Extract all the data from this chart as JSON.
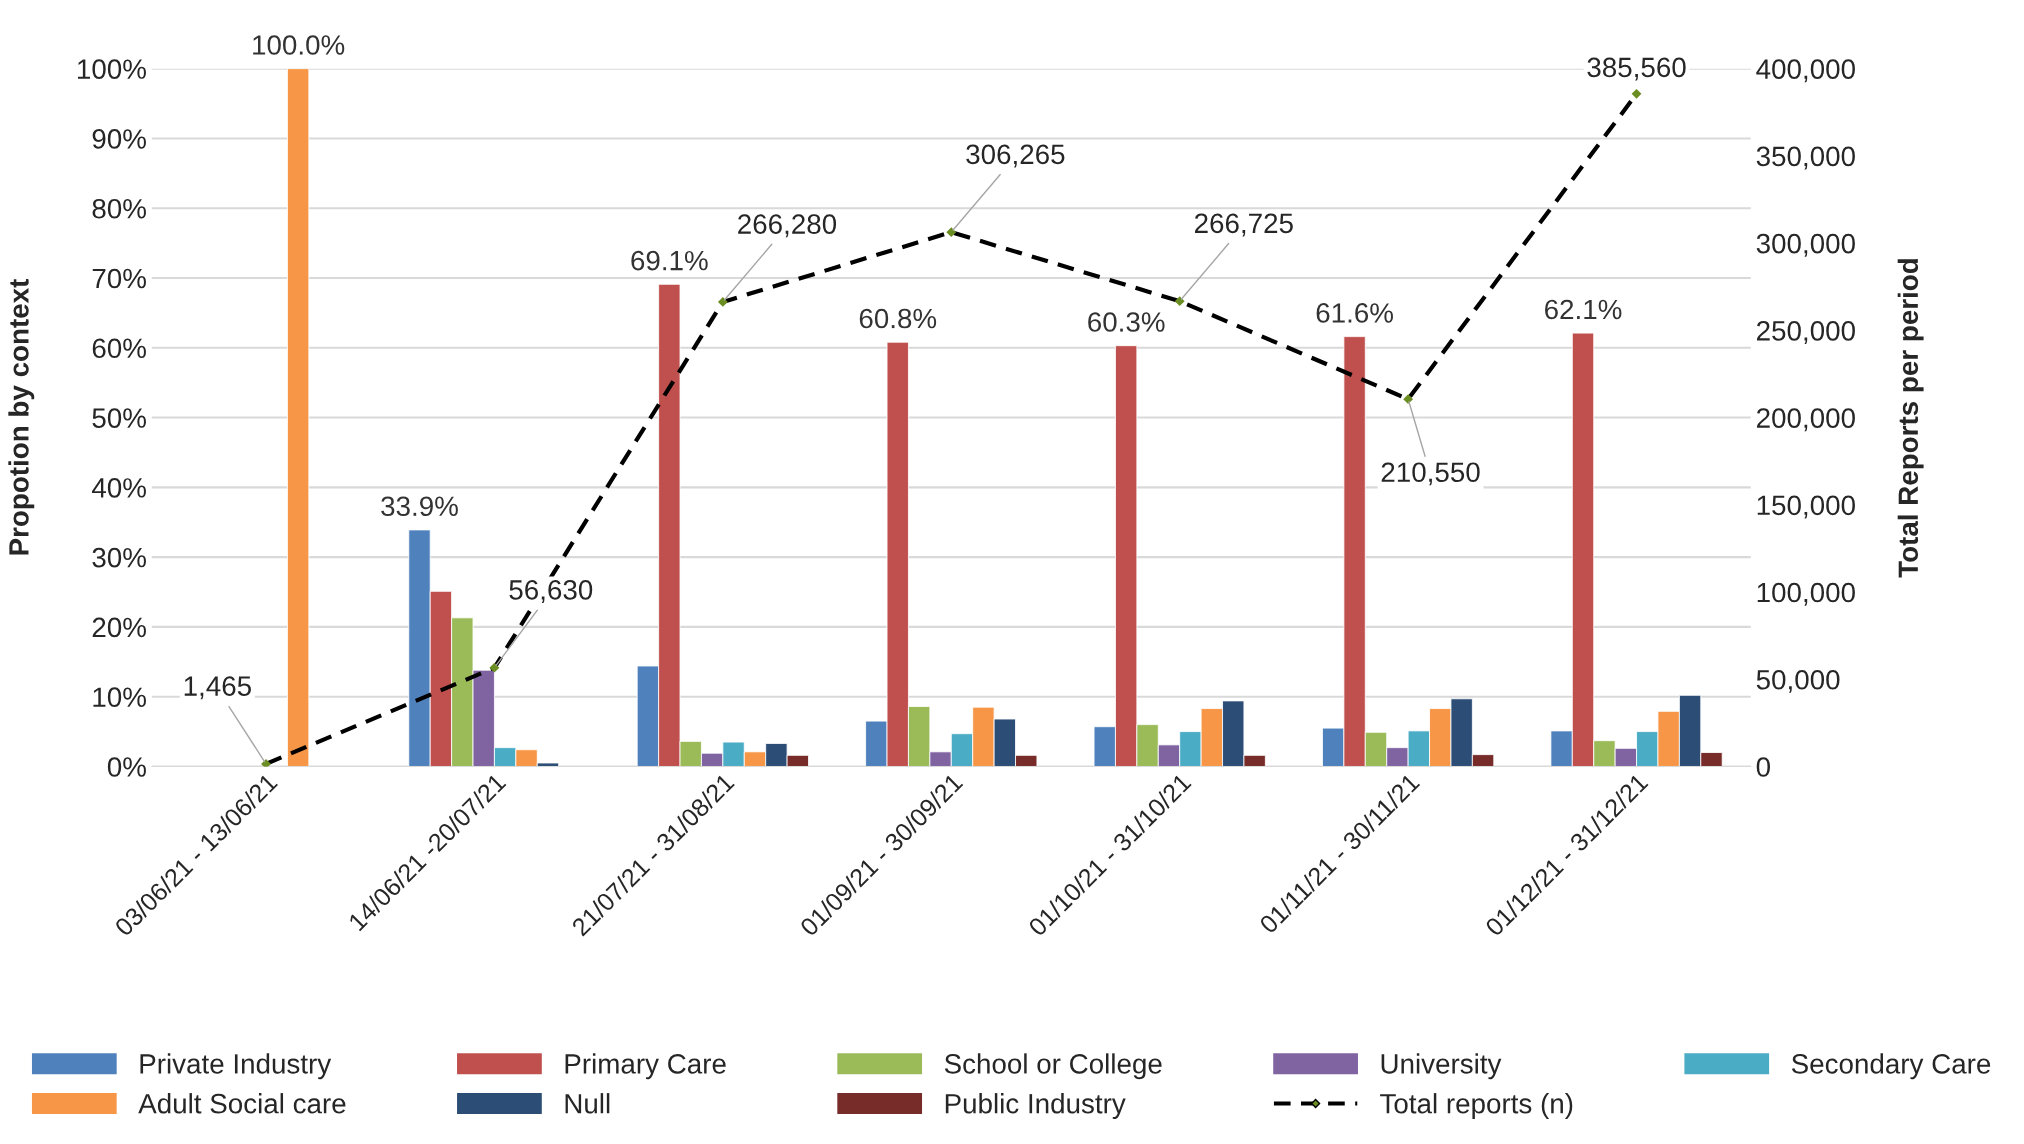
{
  "chart_data": {
    "type": "bar",
    "categories": [
      "03/06/21 - 13/06/21",
      "14/06/21 -20/07/21",
      "21/07/21 - 31/08/21",
      "01/09/21 - 30/09/21",
      "01/10/21 - 31/10/21",
      "01/11/21 - 30/11/21",
      "01/12/21 - 31/12/21"
    ],
    "ylabel": "Propotion by context",
    "y2label": "Total Reports per period",
    "ylim": [
      0,
      100
    ],
    "yticks": [
      {
        "value": 0,
        "label": "0%"
      },
      {
        "value": 10,
        "label": "10%"
      },
      {
        "value": 20,
        "label": "20%"
      },
      {
        "value": 30,
        "label": "30%"
      },
      {
        "value": 40,
        "label": "40%"
      },
      {
        "value": 50,
        "label": "50%"
      },
      {
        "value": 60,
        "label": "60%"
      },
      {
        "value": 70,
        "label": "70%"
      },
      {
        "value": 80,
        "label": "80%"
      },
      {
        "value": 90,
        "label": "90%"
      },
      {
        "value": 100,
        "label": "100%"
      }
    ],
    "y2lim": [
      0,
      400000
    ],
    "y2ticks": [
      0,
      {
        "value": 50000,
        "label": "50,000"
      },
      {
        "value": 100000,
        "label": "100,000"
      },
      {
        "value": 150000,
        "label": "150,000"
      },
      {
        "value": 200000,
        "label": "200,000"
      },
      {
        "value": 250000,
        "label": "250,000"
      },
      {
        "value": 300000,
        "label": "300,000"
      },
      {
        "value": 350000,
        "label": "350,000"
      },
      {
        "value": 400000,
        "label": "400,000"
      }
    ],
    "grid": "y",
    "legend": "bottom",
    "series": [
      {
        "name": "Private Industry",
        "color": "#4f81bd",
        "values": [
          null,
          33.9,
          14.4,
          6.5,
          5.7,
          5.5,
          5.1
        ],
        "value_labels": [
          null,
          "33.9%",
          null,
          null,
          null,
          null,
          null
        ]
      },
      {
        "name": "Primary Care",
        "color": "#c0504d",
        "values": [
          null,
          25.1,
          69.1,
          60.8,
          60.3,
          61.6,
          62.1
        ],
        "value_labels": [
          null,
          null,
          "69.1%",
          "60.8%",
          "60.3%",
          "61.6%",
          "62.1%"
        ]
      },
      {
        "name": "School or College",
        "color": "#9bbb59",
        "values": [
          null,
          21.3,
          3.6,
          8.6,
          6.0,
          4.9,
          3.7
        ]
      },
      {
        "name": "University",
        "color": "#8064a2",
        "values": [
          null,
          13.8,
          1.9,
          2.1,
          3.1,
          2.7,
          2.6
        ]
      },
      {
        "name": "Secondary Care",
        "color": "#4bacc6",
        "values": [
          null,
          2.7,
          3.5,
          4.7,
          5.0,
          5.1,
          5.0
        ]
      },
      {
        "name": "Adult Social care",
        "color": "#f79646",
        "values": [
          100,
          2.4,
          2.1,
          8.5,
          8.3,
          8.3,
          7.9
        ],
        "value_labels": [
          "100.0%",
          null,
          null,
          null,
          null,
          null,
          null
        ]
      },
      {
        "name": "Null",
        "color": "#2c4d75",
        "values": [
          null,
          0.5,
          3.3,
          6.8,
          9.4,
          9.7,
          10.2
        ]
      },
      {
        "name": "Public Industry",
        "color": "#772c2a",
        "values": [
          null,
          null,
          1.6,
          1.6,
          1.6,
          1.7,
          2.0
        ]
      },
      {
        "name": "Total reports (n)",
        "type": "line",
        "axis": "y2",
        "color": "#000000",
        "line_style": "dashed",
        "marker": "diamond",
        "values": [
          1465,
          56630,
          266280,
          306265,
          266725,
          210550,
          385560
        ],
        "value_labels": [
          "1,465",
          "56,630",
          "266,280",
          "306,265",
          "266,725",
          "210,550",
          "385,560"
        ]
      }
    ]
  }
}
